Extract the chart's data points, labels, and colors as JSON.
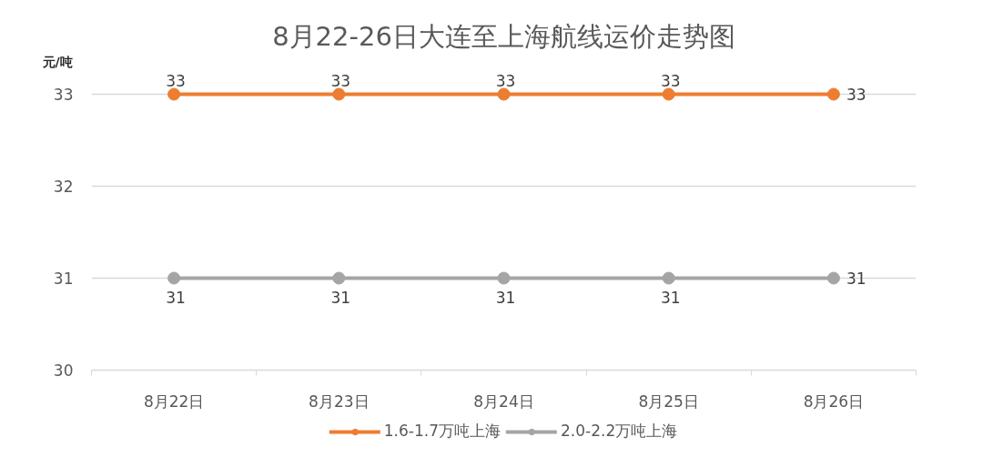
{
  "chart_data": {
    "type": "line",
    "title": "8月22-26日大连至上海航线运价走势图",
    "ylabel": "元/吨",
    "categories": [
      "8月22日",
      "8月23日",
      "8月24日",
      "8月25日",
      "8月26日"
    ],
    "series": [
      {
        "name": "1.6-1.7万吨上海",
        "color": "#ed7d31",
        "values": [
          33,
          33,
          33,
          33,
          33
        ]
      },
      {
        "name": "2.0-2.2万吨上海",
        "color": "#a5a5a5",
        "values": [
          31,
          31,
          31,
          31,
          31
        ]
      }
    ],
    "ylim": [
      30,
      33
    ],
    "yticks": [
      30,
      31,
      32,
      33
    ],
    "grid": "y",
    "legend": "bottom",
    "marker": "circle",
    "line_style": "solid",
    "data_labels": true
  }
}
